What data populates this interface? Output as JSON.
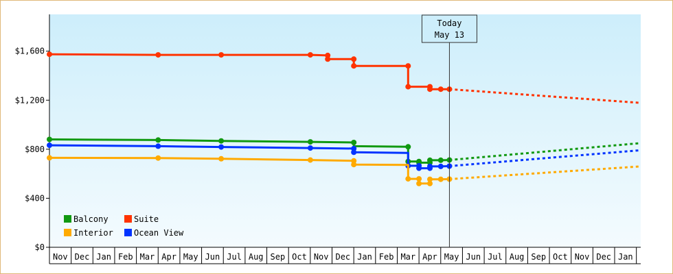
{
  "chart_data": {
    "type": "line",
    "title": "",
    "xlabel": "",
    "ylabel": "",
    "ylim": [
      0,
      1900
    ],
    "yticks": [
      {
        "value": 0,
        "label": "$0"
      },
      {
        "value": 400,
        "label": "$400"
      },
      {
        "value": 800,
        "label": "$800"
      },
      {
        "value": 1200,
        "label": "$1,200"
      },
      {
        "value": 1600,
        "label": "$1,600"
      }
    ],
    "x_unit": "months since start of Nov",
    "xlim": [
      0,
      27.2
    ],
    "months": [
      "Nov",
      "Dec",
      "Jan",
      "Feb",
      "Mar",
      "Apr",
      "May",
      "Jun",
      "Jul",
      "Aug",
      "Sep",
      "Oct",
      "Nov",
      "Dec",
      "Jan",
      "Feb",
      "Mar",
      "Apr",
      "May",
      "Jun",
      "Jul",
      "Aug",
      "Sep",
      "Oct",
      "Nov",
      "Dec",
      "Jan"
    ],
    "today": {
      "x": 18.4,
      "line1": "Today",
      "line2": "May 13"
    },
    "legend": {
      "placement": "bottom-left",
      "entries": [
        {
          "name": "Balcony",
          "color": "#119911"
        },
        {
          "name": "Suite",
          "color": "#ff3300"
        },
        {
          "name": "Interior",
          "color": "#ffaa00"
        },
        {
          "name": "Ocean View",
          "color": "#0033ff"
        }
      ]
    },
    "series": [
      {
        "name": "Suite",
        "color": "#ff3300",
        "points": [
          [
            0,
            1575
          ],
          [
            5,
            1570
          ],
          [
            7.9,
            1570
          ],
          [
            12,
            1570
          ],
          [
            12.8,
            1565
          ],
          [
            12.8,
            1535
          ],
          [
            14,
            1535
          ],
          [
            14,
            1480
          ],
          [
            16.5,
            1480
          ],
          [
            16.5,
            1310
          ],
          [
            17.5,
            1310
          ],
          [
            17.5,
            1290
          ],
          [
            18,
            1290
          ],
          [
            18.4,
            1290
          ]
        ],
        "markers": [
          [
            0,
            1575
          ],
          [
            5,
            1570
          ],
          [
            7.9,
            1570
          ],
          [
            12,
            1570
          ],
          [
            12.8,
            1565
          ],
          [
            12.8,
            1535
          ],
          [
            14,
            1535
          ],
          [
            14,
            1480
          ],
          [
            16.5,
            1480
          ],
          [
            16.5,
            1310
          ],
          [
            17.5,
            1310
          ],
          [
            17.5,
            1290
          ],
          [
            18,
            1290
          ],
          [
            18.4,
            1290
          ]
        ],
        "forecast": [
          [
            18.4,
            1290
          ],
          [
            27.2,
            1178
          ]
        ]
      },
      {
        "name": "Balcony",
        "color": "#119911",
        "points": [
          [
            0,
            880
          ],
          [
            5,
            875
          ],
          [
            7.9,
            868
          ],
          [
            12,
            860
          ],
          [
            14,
            855
          ],
          [
            14,
            825
          ],
          [
            16.5,
            820
          ],
          [
            16.5,
            700
          ],
          [
            17,
            700
          ],
          [
            17,
            690
          ],
          [
            17.5,
            690
          ],
          [
            17.5,
            710
          ],
          [
            18,
            710
          ],
          [
            18.4,
            712
          ]
        ],
        "markers": [
          [
            0,
            880
          ],
          [
            5,
            875
          ],
          [
            7.9,
            868
          ],
          [
            12,
            860
          ],
          [
            14,
            855
          ],
          [
            16.5,
            820
          ],
          [
            16.5,
            700
          ],
          [
            17,
            700
          ],
          [
            17,
            690
          ],
          [
            17.5,
            690
          ],
          [
            17.5,
            710
          ],
          [
            18,
            710
          ],
          [
            18.4,
            712
          ]
        ],
        "forecast": [
          [
            18.4,
            712
          ],
          [
            27.2,
            850
          ]
        ]
      },
      {
        "name": "Ocean View",
        "color": "#0033ff",
        "points": [
          [
            0,
            832
          ],
          [
            5,
            825
          ],
          [
            7.9,
            818
          ],
          [
            12,
            810
          ],
          [
            14,
            805
          ],
          [
            14,
            775
          ],
          [
            16.5,
            770
          ],
          [
            16.5,
            665
          ],
          [
            17,
            665
          ],
          [
            17,
            645
          ],
          [
            17.5,
            645
          ],
          [
            17.5,
            660
          ],
          [
            18,
            660
          ],
          [
            18.4,
            662
          ]
        ],
        "markers": [
          [
            0,
            832
          ],
          [
            5,
            825
          ],
          [
            7.9,
            818
          ],
          [
            12,
            810
          ],
          [
            14,
            805
          ],
          [
            14,
            775
          ],
          [
            16.5,
            665
          ],
          [
            17,
            665
          ],
          [
            17,
            645
          ],
          [
            17.5,
            645
          ],
          [
            17.5,
            660
          ],
          [
            18,
            660
          ],
          [
            18.4,
            662
          ]
        ],
        "forecast": [
          [
            18.4,
            662
          ],
          [
            27.2,
            792
          ]
        ]
      },
      {
        "name": "Interior",
        "color": "#ffaa00",
        "points": [
          [
            0,
            730
          ],
          [
            5,
            728
          ],
          [
            7.9,
            722
          ],
          [
            12,
            712
          ],
          [
            14,
            705
          ],
          [
            14,
            675
          ],
          [
            16.5,
            672
          ],
          [
            16.5,
            558
          ],
          [
            17,
            558
          ],
          [
            17,
            520
          ],
          [
            17.5,
            520
          ],
          [
            17.5,
            555
          ],
          [
            18,
            555
          ],
          [
            18.4,
            556
          ]
        ],
        "markers": [
          [
            0,
            730
          ],
          [
            5,
            728
          ],
          [
            7.9,
            722
          ],
          [
            12,
            712
          ],
          [
            14,
            705
          ],
          [
            14,
            675
          ],
          [
            16.5,
            558
          ],
          [
            17,
            558
          ],
          [
            17,
            520
          ],
          [
            17.5,
            520
          ],
          [
            17.5,
            555
          ],
          [
            18,
            555
          ],
          [
            18.4,
            556
          ]
        ],
        "forecast": [
          [
            18.4,
            556
          ],
          [
            27.2,
            660
          ]
        ]
      }
    ]
  }
}
